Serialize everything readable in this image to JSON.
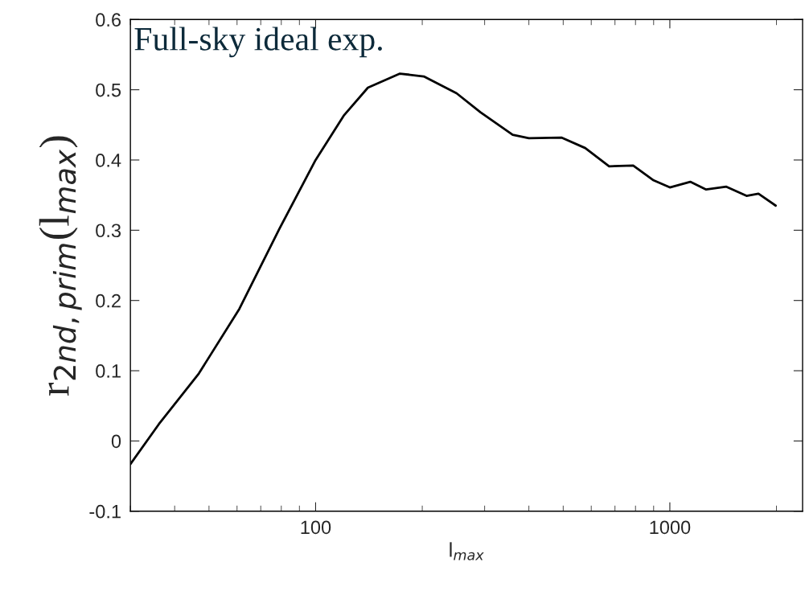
{
  "chart_data": {
    "type": "line",
    "xlabel": "l$_{max}$",
    "ylabel": "r$_{2nd,prim}$(l$_{max}$)",
    "annotations": [
      "Full-sky ideal exp."
    ],
    "log": "x",
    "grid": false,
    "legend": false,
    "marker": "none",
    "line_style": "solid",
    "xlim": [
      30,
      2370
    ],
    "xticks": [
      100,
      1000
    ],
    "ylim": [
      -0.1,
      0.6
    ],
    "yticks": [
      {
        "value": -0.1,
        "label": "-0.1"
      },
      0,
      0.1,
      0.2,
      0.3,
      0.4,
      0.5,
      0.6
    ],
    "series": [
      {
        "color": "#000000",
        "x": [
          30,
          36.1,
          46.8,
          60.9,
          79,
          100,
          120,
          140.5,
          173,
          202,
          250,
          292,
          360,
          400,
          494,
          577,
          674,
          788,
          900,
          1000,
          1142,
          1266,
          1444,
          1646,
          1779,
          1990
        ],
        "values": [
          -0.033,
          0.024,
          0.096,
          0.188,
          0.302,
          0.4,
          0.463,
          0.503,
          0.523,
          0.519,
          0.495,
          0.468,
          0.436,
          0.431,
          0.432,
          0.417,
          0.391,
          0.392,
          0.371,
          0.361,
          0.369,
          0.358,
          0.362,
          0.349,
          0.352,
          0.335
        ]
      }
    ]
  }
}
